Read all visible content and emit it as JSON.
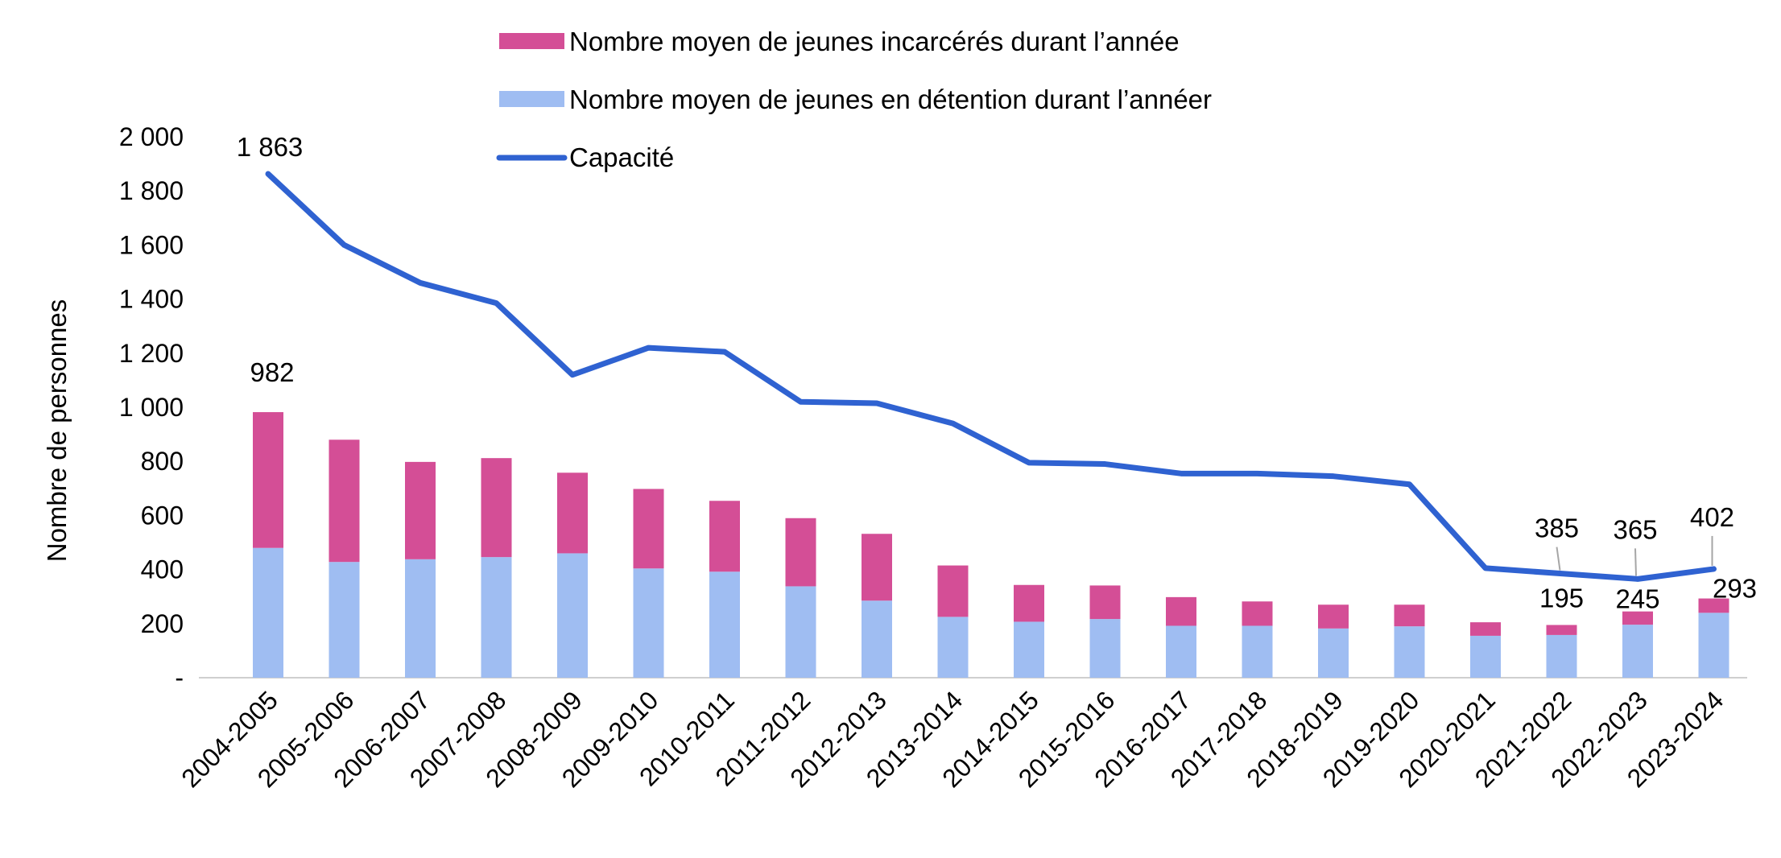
{
  "chart_data": {
    "type": "bar",
    "ylabel": "Nombre de personnes",
    "ylim": [
      0,
      2000
    ],
    "y_ticks": [
      "-",
      "200",
      "400",
      "600",
      "800",
      "1 000",
      "1 200",
      "1 400",
      "1 600",
      "1 800",
      "2 000"
    ],
    "categories": [
      "2004-2005",
      "2005-2006",
      "2006-2007",
      "2007-2008",
      "2008-2009",
      "2009-2010",
      "2010-2011",
      "2011-2012",
      "2012-2013",
      "2013-2014",
      "2014-2015",
      "2015-2016",
      "2016-2017",
      "2017-2018",
      "2018-2019",
      "2019-2020",
      "2020-2021",
      "2021-2022",
      "2022-2023",
      "2023-2024"
    ],
    "legend_position": "top",
    "series": [
      {
        "name": "Nombre moyen de jeunes en détention durant l’annéer",
        "type": "bar",
        "stack": "total",
        "color": "#9FBDF2",
        "values": [
          480,
          428,
          438,
          446,
          460,
          404,
          392,
          338,
          285,
          225,
          207,
          217,
          192,
          192,
          182,
          190,
          155,
          158,
          196,
          240
        ]
      },
      {
        "name": "Nombre moyen de jeunes incarcérés durant l’année",
        "type": "bar",
        "stack": "total",
        "color": "#D44E96",
        "values": [
          502,
          452,
          360,
          366,
          298,
          294,
          262,
          252,
          247,
          190,
          136,
          124,
          106,
          90,
          88,
          80,
          50,
          37,
          49,
          53
        ]
      },
      {
        "name": "Capacité",
        "type": "line",
        "color": "#2F62D1",
        "values": [
          1863,
          1600,
          1460,
          1385,
          1120,
          1220,
          1205,
          1020,
          1015,
          940,
          795,
          790,
          755,
          755,
          745,
          715,
          405,
          385,
          365,
          402
        ]
      }
    ],
    "annotations": [
      {
        "text": "1 863",
        "series": "Capacité",
        "index": 0
      },
      {
        "text": "982",
        "series": "total",
        "index": 0
      },
      {
        "text": "385",
        "series": "Capacité",
        "index": 17
      },
      {
        "text": "365",
        "series": "Capacité",
        "index": 18
      },
      {
        "text": "402",
        "series": "Capacité",
        "index": 19
      },
      {
        "text": "195",
        "series": "total",
        "index": 17
      },
      {
        "text": "245",
        "series": "total",
        "index": 18
      },
      {
        "text": "293",
        "series": "total",
        "index": 19
      }
    ]
  }
}
